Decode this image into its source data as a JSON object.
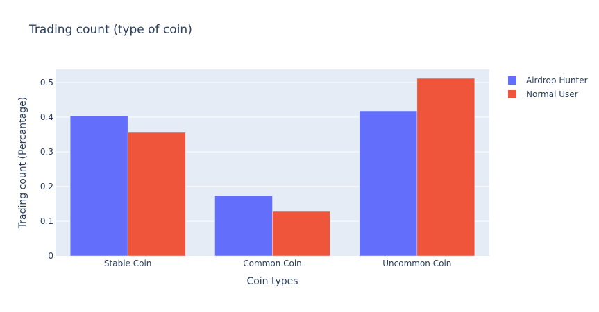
{
  "chart_data": {
    "type": "bar",
    "title": "Trading count (type of coin)",
    "xlabel": "Coin types",
    "ylabel": "Trading count (Percantage)",
    "categories": [
      "Stable Coin",
      "Common Coin",
      "Uncommon Coin"
    ],
    "series": [
      {
        "name": "Airdrop Hunter",
        "color": "#636efa",
        "values": [
          0.404,
          0.174,
          0.418
        ]
      },
      {
        "name": "Normal User",
        "color": "#ef553b",
        "values": [
          0.356,
          0.128,
          0.512
        ]
      }
    ],
    "ylim": [
      0,
      0.537
    ],
    "yticks": [
      "0",
      "0.1",
      "0.2",
      "0.3",
      "0.4",
      "0.5"
    ],
    "grid": true,
    "legend_position": "top-right",
    "barmode": "group"
  },
  "colors": {
    "plot_bg": "#e5ecf6",
    "grid": "#ffffff",
    "text": "#2a3f5f"
  }
}
